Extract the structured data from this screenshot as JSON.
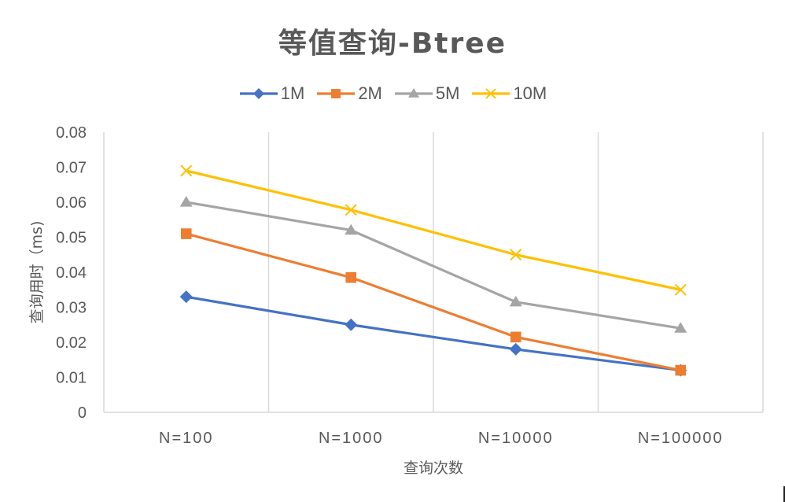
{
  "chart_data": {
    "type": "line",
    "title": "等值查询-Btree",
    "xlabel": "查询次数",
    "ylabel": "查询用时（ms)",
    "categories": [
      "N=100",
      "N=1000",
      "N=10000",
      "N=100000"
    ],
    "ylim": [
      0,
      0.08
    ],
    "yticks": [
      "0",
      "0.01",
      "0.02",
      "0.03",
      "0.04",
      "0.05",
      "0.06",
      "0.07",
      "0.08"
    ],
    "grid": "vertical",
    "legend_position": "top",
    "series": [
      {
        "name": "1M",
        "color": "#4472C4",
        "marker": "diamond",
        "values": [
          0.033,
          0.025,
          0.018,
          0.012
        ]
      },
      {
        "name": "2M",
        "color": "#ED7D31",
        "marker": "square",
        "values": [
          0.051,
          0.0385,
          0.0215,
          0.012
        ]
      },
      {
        "name": "5M",
        "color": "#A5A5A5",
        "marker": "triangle",
        "values": [
          0.06,
          0.052,
          0.0315,
          0.024
        ]
      },
      {
        "name": "10M",
        "color": "#FFC000",
        "marker": "x",
        "values": [
          0.069,
          0.0578,
          0.045,
          0.035
        ]
      }
    ]
  }
}
